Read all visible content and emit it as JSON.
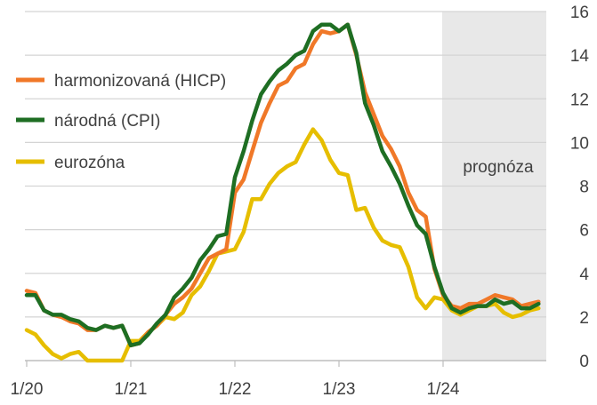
{
  "chart_data": {
    "type": "line",
    "x": [
      "1/20",
      "2/20",
      "3/20",
      "4/20",
      "5/20",
      "6/20",
      "7/20",
      "8/20",
      "9/20",
      "10/20",
      "11/20",
      "12/20",
      "1/21",
      "2/21",
      "3/21",
      "4/21",
      "5/21",
      "6/21",
      "7/21",
      "8/21",
      "9/21",
      "10/21",
      "11/21",
      "12/21",
      "1/22",
      "2/22",
      "3/22",
      "4/22",
      "5/22",
      "6/22",
      "7/22",
      "8/22",
      "9/22",
      "10/22",
      "11/22",
      "12/22",
      "1/23",
      "2/23",
      "3/23",
      "4/23",
      "5/23",
      "6/23",
      "7/23",
      "8/23",
      "9/23",
      "10/23",
      "11/23",
      "12/23",
      "1/24",
      "2/24",
      "3/24",
      "4/24",
      "5/24",
      "6/24",
      "7/24",
      "8/24",
      "9/24",
      "10/24",
      "11/24",
      "12/24"
    ],
    "x_tick_labels": [
      "1/20",
      "1/21",
      "1/22",
      "1/23",
      "1/24"
    ],
    "y_ticks": [
      0,
      2,
      4,
      6,
      8,
      10,
      12,
      14,
      16
    ],
    "ylim": [
      0,
      16
    ],
    "forecast_label": "prognóza",
    "forecast_start": "1/24",
    "series": [
      {
        "name": "harmonizovaná (HICP)",
        "color": "#F07828",
        "values": [
          3.2,
          3.1,
          2.3,
          2.1,
          2.0,
          1.8,
          1.7,
          1.4,
          1.4,
          1.6,
          1.5,
          1.6,
          0.7,
          0.8,
          1.3,
          1.6,
          2.1,
          2.6,
          2.9,
          3.3,
          4.0,
          4.7,
          4.9,
          5.1,
          7.7,
          8.3,
          9.6,
          10.9,
          11.8,
          12.6,
          12.8,
          13.4,
          13.6,
          14.5,
          15.1,
          15.0,
          15.1,
          15.4,
          14.0,
          12.3,
          11.3,
          10.3,
          9.7,
          8.9,
          7.7,
          6.9,
          6.6,
          4.2,
          3.0,
          2.5,
          2.4,
          2.6,
          2.6,
          2.8,
          3.0,
          2.9,
          2.8,
          2.5,
          2.6,
          2.7
        ]
      },
      {
        "name": "národná (CPI)",
        "color": "#1E6E23",
        "values": [
          3.0,
          3.0,
          2.3,
          2.1,
          2.1,
          1.9,
          1.8,
          1.5,
          1.4,
          1.6,
          1.5,
          1.6,
          0.7,
          0.8,
          1.2,
          1.7,
          2.1,
          2.9,
          3.3,
          3.8,
          4.6,
          5.1,
          5.7,
          5.8,
          8.4,
          9.6,
          11.0,
          12.2,
          12.8,
          13.3,
          13.6,
          14.0,
          14.2,
          15.1,
          15.4,
          15.4,
          15.1,
          15.4,
          14.1,
          11.8,
          10.8,
          9.6,
          8.9,
          8.1,
          7.1,
          6.2,
          5.8,
          4.3,
          3.1,
          2.4,
          2.2,
          2.4,
          2.5,
          2.5,
          2.8,
          2.6,
          2.7,
          2.4,
          2.4,
          2.6
        ]
      },
      {
        "name": "eurozóna",
        "color": "#E6BE00",
        "values": [
          1.4,
          1.2,
          0.7,
          0.3,
          0.1,
          0.3,
          0.4,
          -0.2,
          -0.3,
          -0.3,
          -0.3,
          -0.3,
          0.9,
          0.9,
          1.3,
          1.6,
          2.0,
          1.9,
          2.2,
          3.0,
          3.4,
          4.1,
          4.9,
          5.0,
          5.1,
          5.9,
          7.4,
          7.4,
          8.1,
          8.6,
          8.9,
          9.1,
          9.9,
          10.6,
          10.1,
          9.2,
          8.6,
          8.5,
          6.9,
          7.0,
          6.1,
          5.5,
          5.3,
          5.2,
          4.3,
          2.9,
          2.4,
          2.9,
          2.8,
          2.3,
          2.1,
          2.3,
          2.5,
          2.5,
          2.6,
          2.2,
          2.0,
          2.1,
          2.3,
          2.4
        ]
      }
    ]
  }
}
